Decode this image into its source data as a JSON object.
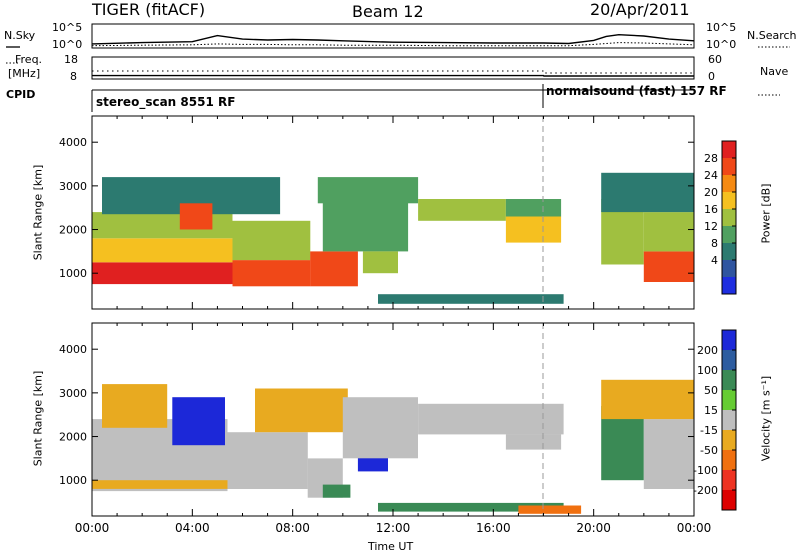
{
  "header": {
    "radar": "TIGER (fitACF)",
    "beam": "Beam 12",
    "date": "20/Apr/2011"
  },
  "noise_panel": {
    "left_label": "N.Sky",
    "right_label": "N.Search",
    "yticks_left": [
      "10^5",
      "10^0"
    ],
    "yticks_right": [
      "10^5",
      "10^0"
    ]
  },
  "freq_panel": {
    "left_label_line1": "Freq.",
    "left_label_line2": "[MHz]",
    "right_label": "Nave",
    "yticks_left": [
      "18",
      "8"
    ],
    "yticks_right": [
      "60",
      "0"
    ]
  },
  "cpid_panel": {
    "label": "CPID",
    "modes": [
      {
        "name": "stereo_scan 8551 RF",
        "start_hour": 0
      },
      {
        "name": "normalsound (fast) 157 RF",
        "start_hour": 18
      }
    ]
  },
  "x_axis": {
    "label": "Time UT",
    "ticks": [
      "00:00",
      "04:00",
      "08:00",
      "12:00",
      "16:00",
      "20:00",
      "00:00"
    ]
  },
  "power_colorbar": {
    "label": "Power [dB]",
    "ticks": [
      "28",
      "24",
      "20",
      "16",
      "12",
      "8",
      "4"
    ],
    "colors": [
      "#e02020",
      "#f04818",
      "#f58a12",
      "#f5c020",
      "#a0c040",
      "#50a060",
      "#2c7a70",
      "#2f55a0",
      "#1e2ee0"
    ]
  },
  "velocity_colorbar": {
    "label": "Velocity [m s⁻¹]",
    "ticks": [
      "200",
      "100",
      "50",
      "15",
      "-15",
      "-50",
      "-100",
      "-200"
    ],
    "colors": [
      "#1c28d8",
      "#2d5da0",
      "#3a8a55",
      "#66cc33",
      "#bfbfbf",
      "#e8aa20",
      "#f07010",
      "#ee3322",
      "#dd0000"
    ]
  },
  "chart_data": [
    {
      "type": "heatmap",
      "name": "power_panel",
      "ylabel": "Slant Range [km]",
      "xlabel": "Time UT",
      "xlim": [
        0,
        24
      ],
      "ylim": [
        180,
        4600
      ],
      "yticks": [
        1000,
        2000,
        3000,
        4000
      ],
      "colorbar_label": "Power [dB]",
      "regions": [
        {
          "t0": 0,
          "t1": 5.6,
          "r0": 750,
          "r1": 1250,
          "value": 27
        },
        {
          "t0": 0,
          "t1": 5.6,
          "r0": 1250,
          "r1": 1800,
          "value": 18
        },
        {
          "t0": 0,
          "t1": 5.6,
          "r0": 1800,
          "r1": 2400,
          "value": 14
        },
        {
          "t0": 0.4,
          "t1": 7.5,
          "r0": 2350,
          "r1": 3200,
          "value": 8
        },
        {
          "t0": 3.5,
          "t1": 4.8,
          "r0": 2000,
          "r1": 2600,
          "value": 26
        },
        {
          "t0": 5.6,
          "t1": 8.7,
          "r0": 700,
          "r1": 1300,
          "value": 25
        },
        {
          "t0": 5.6,
          "t1": 8.7,
          "r0": 1300,
          "r1": 2200,
          "value": 14
        },
        {
          "t0": 8.7,
          "t1": 10.6,
          "r0": 700,
          "r1": 1500,
          "value": 26
        },
        {
          "t0": 9.2,
          "t1": 12.6,
          "r0": 1500,
          "r1": 2700,
          "value": 12
        },
        {
          "t0": 10.8,
          "t1": 12.2,
          "r0": 1000,
          "r1": 1500,
          "value": 14
        },
        {
          "t0": 9.0,
          "t1": 13.0,
          "r0": 2600,
          "r1": 3200,
          "value": 9
        },
        {
          "t0": 13.0,
          "t1": 16.5,
          "r0": 2200,
          "r1": 2700,
          "value": 13
        },
        {
          "t0": 16.5,
          "t1": 18.7,
          "r0": 1700,
          "r1": 2300,
          "value": 18
        },
        {
          "t0": 16.5,
          "t1": 18.7,
          "r0": 2300,
          "r1": 2700,
          "value": 10
        },
        {
          "t0": 11.4,
          "t1": 18.8,
          "r0": 300,
          "r1": 520,
          "value": 6
        },
        {
          "t0": 20.3,
          "t1": 22.0,
          "r0": 1200,
          "r1": 2700,
          "value": 14
        },
        {
          "t0": 22.0,
          "t1": 24,
          "r0": 800,
          "r1": 1500,
          "value": 26
        },
        {
          "t0": 22.0,
          "t1": 24,
          "r0": 1500,
          "r1": 2400,
          "value": 15
        },
        {
          "t0": 20.3,
          "t1": 24,
          "r0": 2400,
          "r1": 3300,
          "value": 7
        }
      ]
    },
    {
      "type": "heatmap",
      "name": "velocity_panel",
      "ylabel": "Slant Range [km]",
      "xlabel": "Time UT",
      "xlim": [
        0,
        24
      ],
      "ylim": [
        180,
        4600
      ],
      "yticks": [
        1000,
        2000,
        3000,
        4000
      ],
      "colorbar_label": "Velocity [m s⁻¹]",
      "regions": [
        {
          "t0": 0,
          "t1": 5.4,
          "r0": 750,
          "r1": 2400,
          "value": 0
        },
        {
          "t0": 0,
          "t1": 5.4,
          "r0": 800,
          "r1": 1000,
          "value": -40
        },
        {
          "t0": 0.4,
          "t1": 3.0,
          "r0": 2200,
          "r1": 3200,
          "value": -20
        },
        {
          "t0": 3.2,
          "t1": 5.3,
          "r0": 1800,
          "r1": 2900,
          "value": 200
        },
        {
          "t0": 5.4,
          "t1": 8.6,
          "r0": 800,
          "r1": 2100,
          "value": 0
        },
        {
          "t0": 6.5,
          "t1": 10.2,
          "r0": 2100,
          "r1": 3100,
          "value": -40
        },
        {
          "t0": 8.6,
          "t1": 10.0,
          "r0": 600,
          "r1": 1500,
          "value": 0
        },
        {
          "t0": 10.6,
          "t1": 11.8,
          "r0": 1200,
          "r1": 2000,
          "value": 200
        },
        {
          "t0": 9.2,
          "t1": 10.3,
          "r0": 600,
          "r1": 900,
          "value": 55
        },
        {
          "t0": 10.0,
          "t1": 13.0,
          "r0": 1500,
          "r1": 2900,
          "value": 0
        },
        {
          "t0": 13.0,
          "t1": 18.8,
          "r0": 2050,
          "r1": 2750,
          "value": 0
        },
        {
          "t0": 16.5,
          "t1": 18.7,
          "r0": 1700,
          "r1": 2050,
          "value": 0
        },
        {
          "t0": 11.4,
          "t1": 18.8,
          "r0": 280,
          "r1": 480,
          "value": 60
        },
        {
          "t0": 17.0,
          "t1": 19.5,
          "r0": 230,
          "r1": 420,
          "value": -60
        },
        {
          "t0": 20.3,
          "t1": 22.0,
          "r0": 1000,
          "r1": 2700,
          "value": 60
        },
        {
          "t0": 22.0,
          "t1": 24,
          "r0": 800,
          "r1": 2400,
          "value": 0
        },
        {
          "t0": 20.3,
          "t1": 24,
          "r0": 2400,
          "r1": 3300,
          "value": -20
        }
      ]
    },
    {
      "type": "line",
      "name": "noise_panel",
      "x": [
        0,
        2,
        4,
        5,
        6,
        7,
        8,
        9,
        10,
        12,
        14,
        16,
        18,
        19,
        20,
        20.5,
        21,
        22,
        23,
        24
      ],
      "series": [
        {
          "values": [
            0.7,
            1.0,
            1.2,
            2.6,
            1.8,
            1.6,
            1.7,
            1.6,
            1.4,
            1.1,
            1.0,
            0.9,
            0.9,
            0.8,
            1.5,
            2.4,
            2.8,
            2.5,
            1.8,
            1.4
          ]
        },
        {
          "values": [
            0.3,
            0.4,
            0.5,
            0.7,
            0.6,
            0.6,
            0.5,
            0.5,
            0.4,
            0.4,
            0.3,
            0.3,
            0.3,
            0.3,
            0.6,
            0.8,
            1.0,
            0.9,
            0.7,
            0.5
          ]
        }
      ]
    },
    {
      "type": "line",
      "name": "freq_panel",
      "x": [
        0,
        18,
        18.01,
        24
      ],
      "series": [
        {
          "values": [
            11.5,
            11.5,
            10.5,
            10.5
          ]
        },
        {
          "values": [
            9.2,
            9.2,
            9.0,
            9.0
          ]
        }
      ]
    }
  ]
}
